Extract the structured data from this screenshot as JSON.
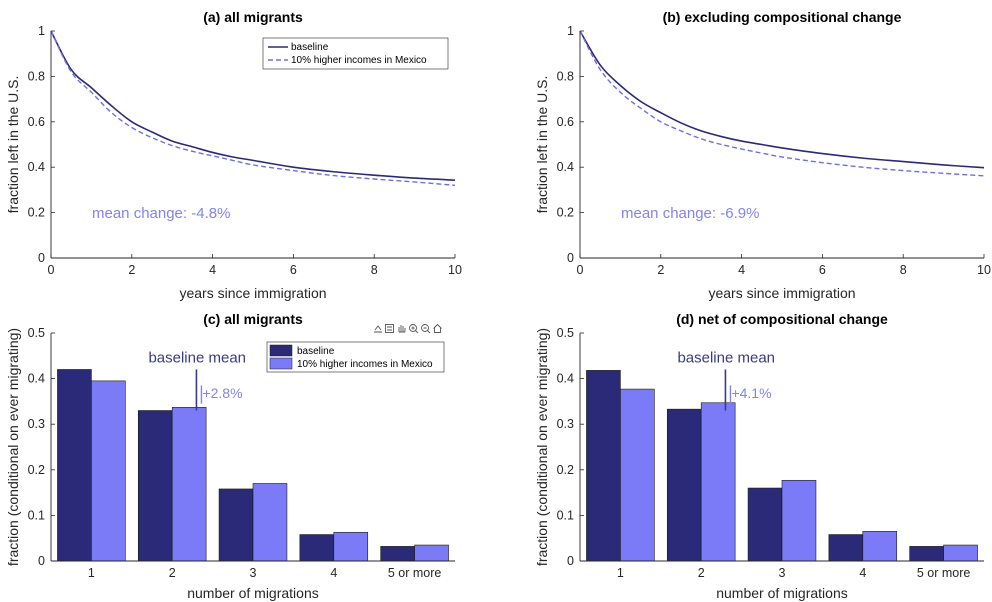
{
  "colors": {
    "baseline": "#2a2a78",
    "scenario": "#7b7bf7",
    "scenario_dash": "#6e6ee8",
    "annotation_scenario": "#8383f0",
    "annotation_baseline": "#3a3a8a",
    "axis": "#262626"
  },
  "toolbar_icons": [
    "export-icon",
    "data-tips-icon",
    "pan-icon",
    "zoom-in-icon",
    "zoom-out-icon",
    "home-icon"
  ],
  "chart_data": [
    {
      "id": "a",
      "type": "line",
      "title": "(a) all migrants",
      "xlabel": "years since immigration",
      "ylabel": "fraction left in the U.S.",
      "xlim": [
        0,
        10
      ],
      "ylim": [
        0,
        1
      ],
      "xticks": [
        "0",
        "2",
        "4",
        "6",
        "8",
        "10"
      ],
      "yticks": [
        "0",
        "0.2",
        "0.4",
        "0.6",
        "0.8",
        "1"
      ],
      "legend": {
        "position": "top-right",
        "entries": [
          "baseline",
          "10% higher incomes in Mexico"
        ]
      },
      "annotation": "mean change: -4.8%",
      "series": [
        {
          "name": "baseline",
          "style": "solid",
          "x": [
            0,
            0.5,
            1,
            1.5,
            2,
            2.5,
            3,
            3.5,
            4,
            4.5,
            5,
            6,
            7,
            8,
            9,
            10
          ],
          "y": [
            1.0,
            0.83,
            0.75,
            0.67,
            0.6,
            0.555,
            0.515,
            0.49,
            0.465,
            0.445,
            0.43,
            0.4,
            0.38,
            0.365,
            0.352,
            0.343
          ]
        },
        {
          "name": "10% higher incomes in Mexico",
          "style": "dashed",
          "x": [
            0,
            0.5,
            1,
            1.5,
            2,
            2.5,
            3,
            3.5,
            4,
            4.5,
            5,
            6,
            7,
            8,
            9,
            10
          ],
          "y": [
            1.0,
            0.82,
            0.73,
            0.64,
            0.575,
            0.53,
            0.495,
            0.47,
            0.45,
            0.43,
            0.41,
            0.385,
            0.363,
            0.348,
            0.335,
            0.32
          ]
        }
      ]
    },
    {
      "id": "b",
      "type": "line",
      "title": "(b) excluding compositional change",
      "xlabel": "years since immigration",
      "ylabel": "fraction left in the U.S.",
      "xlim": [
        0,
        10
      ],
      "ylim": [
        0,
        1
      ],
      "xticks": [
        "0",
        "2",
        "4",
        "6",
        "8",
        "10"
      ],
      "yticks": [
        "0",
        "0.2",
        "0.4",
        "0.6",
        "0.8",
        "1"
      ],
      "annotation": "mean change: -6.9%",
      "series": [
        {
          "name": "",
          "style": "solid",
          "x": [
            0,
            0.5,
            1,
            1.5,
            2,
            2.5,
            3,
            3.5,
            4,
            4.5,
            5,
            6,
            7,
            8,
            9,
            10
          ],
          "y": [
            1.0,
            0.85,
            0.76,
            0.69,
            0.64,
            0.595,
            0.56,
            0.535,
            0.515,
            0.5,
            0.485,
            0.46,
            0.44,
            0.425,
            0.41,
            0.398
          ]
        },
        {
          "name": "",
          "style": "dashed",
          "x": [
            0,
            0.5,
            1,
            1.5,
            2,
            2.5,
            3,
            3.5,
            4,
            4.5,
            5,
            6,
            7,
            8,
            9,
            10
          ],
          "y": [
            1.0,
            0.83,
            0.73,
            0.66,
            0.6,
            0.56,
            0.525,
            0.5,
            0.48,
            0.462,
            0.445,
            0.42,
            0.4,
            0.385,
            0.373,
            0.362
          ]
        }
      ]
    },
    {
      "id": "c",
      "type": "bar",
      "title": "(c) all migrants",
      "xlabel": "number of migrations",
      "ylabel": "fraction (conditional on ever migrating)",
      "ylim": [
        0,
        0.5
      ],
      "yticks": [
        "0",
        "0.1",
        "0.2",
        "0.3",
        "0.4",
        "0.5"
      ],
      "categories": [
        "1",
        "2",
        "3",
        "4",
        "5 or more"
      ],
      "legend": {
        "position": "top-center",
        "entries": [
          "baseline",
          "10% higher incomes in Mexico"
        ]
      },
      "baseline_mean_label": "baseline mean",
      "baseline_mean_x": 2.3,
      "change_label": "+2.8%",
      "series": [
        {
          "name": "baseline",
          "values": [
            0.42,
            0.33,
            0.158,
            0.058,
            0.032
          ]
        },
        {
          "name": "10% higher incomes in Mexico",
          "values": [
            0.395,
            0.337,
            0.17,
            0.063,
            0.035
          ]
        }
      ]
    },
    {
      "id": "d",
      "type": "bar",
      "title": "(d) net of compositional change",
      "xlabel": "number of migrations",
      "ylabel": "fraction (conditional on ever migrating)",
      "ylim": [
        0,
        0.5
      ],
      "yticks": [
        "0",
        "0.1",
        "0.2",
        "0.3",
        "0.4",
        "0.5"
      ],
      "categories": [
        "1",
        "2",
        "3",
        "4",
        "5 or more"
      ],
      "baseline_mean_label": "baseline mean",
      "baseline_mean_x": 2.3,
      "change_label": "+4.1%",
      "series": [
        {
          "name": "",
          "values": [
            0.418,
            0.333,
            0.16,
            0.058,
            0.032
          ]
        },
        {
          "name": "",
          "values": [
            0.377,
            0.347,
            0.177,
            0.065,
            0.035
          ]
        }
      ]
    }
  ]
}
